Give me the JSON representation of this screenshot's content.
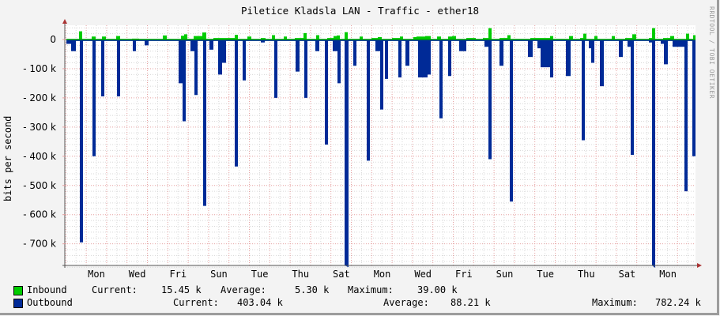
{
  "header": {
    "title": "Piletice Kladsla LAN - Traffic - ether18",
    "credit": "RRDTOOL / TOBI OETIKER"
  },
  "axes": {
    "ylabel": "bits per second",
    "yticks": [
      "0",
      "- 100  k",
      "- 200  k",
      "- 300  k",
      "- 400  k",
      "- 500  k",
      "- 600  k",
      "- 700  k"
    ],
    "xticks": [
      "Mon",
      "Wed",
      "Fri",
      "Sun",
      "Tue",
      "Thu",
      "Sat",
      "Mon",
      "Wed",
      "Fri",
      "Sun",
      "Tue",
      "Thu",
      "Sat",
      "Mon"
    ]
  },
  "legend": {
    "inbound": {
      "label": "Inbound",
      "color": "#00cc00",
      "current_label": "Current:",
      "current": "15.45 k",
      "average_label": "Average:",
      "average": "5.30 k",
      "maximum_label": "Maximum:",
      "maximum": "39.00 k"
    },
    "outbound": {
      "label": "Outbound",
      "color": "#002a97",
      "current_label": "Current:",
      "current": "403.04 k",
      "average_label": "Average:",
      "average": "88.21 k",
      "maximum_label": "Maximum:",
      "maximum": "782.24 k"
    }
  },
  "chart_data": {
    "type": "area",
    "title": "Piletice Kladsla LAN - Traffic - ether18",
    "xlabel": "",
    "ylabel": "bits per second",
    "ylim": [
      -780,
      40
    ],
    "y_units": "k bits/s (outbound plotted negative)",
    "categories": [
      "Mon",
      "Wed",
      "Fri",
      "Sun",
      "Tue",
      "Thu",
      "Sat",
      "Mon",
      "Wed",
      "Fri",
      "Sun",
      "Tue",
      "Thu",
      "Sat",
      "Mon"
    ],
    "grid": true,
    "legend_position": "bottom",
    "series": [
      {
        "name": "Inbound",
        "color": "#00cc00",
        "points": [
          [
            84,
            2
          ],
          [
            90,
            2
          ],
          [
            100,
            28
          ],
          [
            104,
            2
          ],
          [
            116,
            10
          ],
          [
            121,
            2
          ],
          [
            129,
            10
          ],
          [
            134,
            2
          ],
          [
            147,
            12
          ],
          [
            152,
            2
          ],
          [
            167,
            3
          ],
          [
            176,
            2
          ],
          [
            200,
            2
          ],
          [
            206,
            14
          ],
          [
            211,
            2
          ],
          [
            229,
            13
          ],
          [
            233,
            18
          ],
          [
            237,
            2
          ],
          [
            245,
            12
          ],
          [
            256,
            24
          ],
          [
            261,
            2
          ],
          [
            270,
            5
          ],
          [
            278,
            5
          ],
          [
            285,
            5
          ],
          [
            297,
            16
          ],
          [
            301,
            2
          ],
          [
            313,
            10
          ],
          [
            318,
            2
          ],
          [
            330,
            5
          ],
          [
            336,
            2
          ],
          [
            344,
            15
          ],
          [
            348,
            2
          ],
          [
            359,
            10
          ],
          [
            363,
            2
          ],
          [
            373,
            5
          ],
          [
            384,
            22
          ],
          [
            388,
            2
          ],
          [
            400,
            15
          ],
          [
            404,
            2
          ],
          [
            414,
            5
          ],
          [
            422,
            12
          ],
          [
            426,
            14
          ],
          [
            430,
            2
          ],
          [
            436,
            25
          ],
          [
            440,
            2
          ],
          [
            455,
            10
          ],
          [
            459,
            2
          ],
          [
            470,
            5
          ],
          [
            478,
            8
          ],
          [
            483,
            2
          ],
          [
            496,
            5
          ],
          [
            506,
            10
          ],
          [
            510,
            2
          ],
          [
            523,
            8
          ],
          [
            527,
            10
          ],
          [
            532,
            10
          ],
          [
            538,
            12
          ],
          [
            545,
            2
          ],
          [
            553,
            10
          ],
          [
            558,
            2
          ],
          [
            567,
            10
          ],
          [
            572,
            12
          ],
          [
            577,
            2
          ],
          [
            590,
            5
          ],
          [
            602,
            2
          ],
          [
            611,
            5
          ],
          [
            618,
            39
          ],
          [
            622,
            2
          ],
          [
            632,
            5
          ],
          [
            642,
            15
          ],
          [
            646,
            2
          ],
          [
            671,
            5
          ],
          [
            686,
            5
          ],
          [
            696,
            12
          ],
          [
            700,
            2
          ],
          [
            720,
            12
          ],
          [
            725,
            2
          ],
          [
            734,
            5
          ],
          [
            738,
            20
          ],
          [
            742,
            2
          ],
          [
            752,
            12
          ],
          [
            756,
            2
          ],
          [
            774,
            12
          ],
          [
            778,
            2
          ],
          [
            791,
            5
          ],
          [
            800,
            18
          ],
          [
            805,
            2
          ],
          [
            821,
            5
          ],
          [
            825,
            39
          ],
          [
            829,
            2
          ],
          [
            839,
            5
          ],
          [
            848,
            12
          ],
          [
            853,
            2
          ],
          [
            868,
            20
          ],
          [
            872,
            2
          ],
          [
            877,
            15
          ]
        ]
      },
      {
        "name": "Outbound",
        "color": "#002a97",
        "points": [
          [
            84,
            -15
          ],
          [
            88,
            -15
          ],
          [
            90,
            -40
          ],
          [
            96,
            -5
          ],
          [
            101,
            -695
          ],
          [
            105,
            -5
          ],
          [
            117,
            -400
          ],
          [
            121,
            -5
          ],
          [
            128,
            -195
          ],
          [
            132,
            -5
          ],
          [
            148,
            -195
          ],
          [
            152,
            -5
          ],
          [
            168,
            -40
          ],
          [
            172,
            -5
          ],
          [
            183,
            -20
          ],
          [
            188,
            -5
          ],
          [
            226,
            -150
          ],
          [
            231,
            -280
          ],
          [
            235,
            -5
          ],
          [
            241,
            -40
          ],
          [
            246,
            -190
          ],
          [
            250,
            -5
          ],
          [
            257,
            -570
          ],
          [
            261,
            -5
          ],
          [
            265,
            -35
          ],
          [
            270,
            -5
          ],
          [
            276,
            -120
          ],
          [
            281,
            -80
          ],
          [
            286,
            -5
          ],
          [
            297,
            -435
          ],
          [
            301,
            -5
          ],
          [
            307,
            -140
          ],
          [
            311,
            -5
          ],
          [
            322,
            -5
          ],
          [
            330,
            -10
          ],
          [
            335,
            -5
          ],
          [
            347,
            -200
          ],
          [
            351,
            -5
          ],
          [
            374,
            -110
          ],
          [
            379,
            -5
          ],
          [
            385,
            -200
          ],
          [
            389,
            -5
          ],
          [
            399,
            -40
          ],
          [
            404,
            -5
          ],
          [
            411,
            -360
          ],
          [
            415,
            -5
          ],
          [
            421,
            -40
          ],
          [
            427,
            -150
          ],
          [
            431,
            -5
          ],
          [
            436,
            -780
          ],
          [
            441,
            -5
          ],
          [
            447,
            -90
          ],
          [
            451,
            -5
          ],
          [
            464,
            -415
          ],
          [
            468,
            -5
          ],
          [
            475,
            -40
          ],
          [
            481,
            -240
          ],
          [
            485,
            -5
          ],
          [
            487,
            -135
          ],
          [
            491,
            -5
          ],
          [
            504,
            -130
          ],
          [
            508,
            -5
          ],
          [
            513,
            -90
          ],
          [
            518,
            -5
          ],
          [
            529,
            -130
          ],
          [
            541,
            -120
          ],
          [
            545,
            -5
          ],
          [
            556,
            -270
          ],
          [
            560,
            -5
          ],
          [
            567,
            -125
          ],
          [
            571,
            -5
          ],
          [
            581,
            -40
          ],
          [
            590,
            -5
          ],
          [
            595,
            -5
          ],
          [
            604,
            -5
          ],
          [
            613,
            -25
          ],
          [
            618,
            -410
          ],
          [
            622,
            -5
          ],
          [
            632,
            -90
          ],
          [
            637,
            -5
          ],
          [
            645,
            -555
          ],
          [
            649,
            -5
          ],
          [
            668,
            -60
          ],
          [
            674,
            -5
          ],
          [
            680,
            -30
          ],
          [
            684,
            -95
          ],
          [
            694,
            -95
          ],
          [
            696,
            -130
          ],
          [
            700,
            -5
          ],
          [
            709,
            -5
          ],
          [
            716,
            -125
          ],
          [
            722,
            -5
          ],
          [
            736,
            -345
          ],
          [
            740,
            -5
          ],
          [
            745,
            -30
          ],
          [
            748,
            -80
          ],
          [
            752,
            -5
          ],
          [
            759,
            -160
          ],
          [
            764,
            -5
          ],
          [
            783,
            -60
          ],
          [
            788,
            -5
          ],
          [
            794,
            -25
          ],
          [
            798,
            -395
          ],
          [
            802,
            -5
          ],
          [
            815,
            -5
          ],
          [
            821,
            -10
          ],
          [
            825,
            -782
          ],
          [
            829,
            -5
          ],
          [
            836,
            -15
          ],
          [
            840,
            -85
          ],
          [
            845,
            -5
          ],
          [
            851,
            -25
          ],
          [
            860,
            -25
          ],
          [
            866,
            -520
          ],
          [
            870,
            -5
          ],
          [
            876,
            -400
          ],
          [
            880,
            -403
          ]
        ]
      }
    ]
  }
}
